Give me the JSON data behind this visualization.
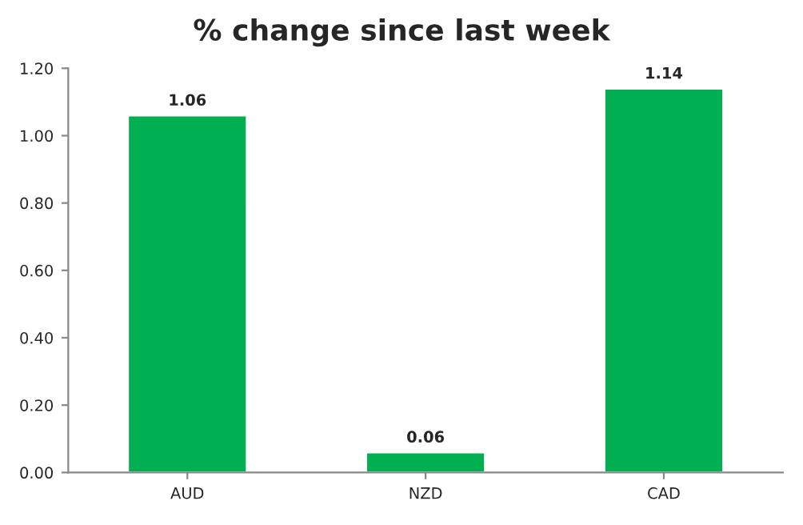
{
  "chart_data": {
    "type": "bar",
    "title": "% change since last week",
    "categories": [
      "AUD",
      "NZD",
      "CAD"
    ],
    "values": [
      1.06,
      0.06,
      1.14
    ],
    "color": "#00b050",
    "ylim": [
      0,
      1.2
    ],
    "yticks": [
      {
        "value": 0,
        "label": "0.00"
      },
      {
        "value": 0.2,
        "label": "0.20"
      },
      {
        "value": 0.4,
        "label": "0.40"
      },
      {
        "value": 0.6,
        "label": "0.60"
      },
      {
        "value": 0.8,
        "label": "0.80"
      },
      {
        "value": 1.0,
        "label": "1.00"
      },
      {
        "value": 1.2,
        "label": "1.20"
      }
    ],
    "data_labels": true,
    "grid": false,
    "legend": false
  }
}
